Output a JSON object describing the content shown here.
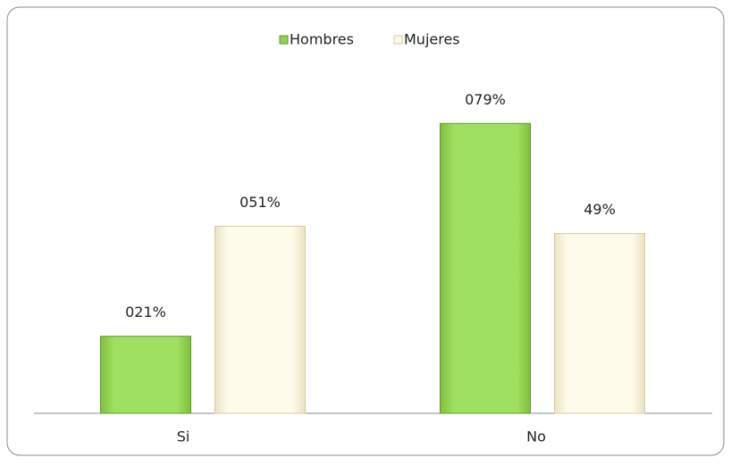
{
  "chart_data": {
    "type": "bar",
    "categories": [
      "Si",
      "No"
    ],
    "series": [
      {
        "name": "Hombres",
        "color": "#92d050",
        "values": [
          21,
          79
        ],
        "value_labels": [
          "021%",
          "079%"
        ]
      },
      {
        "name": "Mujeres",
        "color": "#fdf8e4",
        "values": [
          51,
          49
        ],
        "value_labels": [
          "051%",
          "49%"
        ]
      }
    ],
    "ylim": [
      0,
      100
    ],
    "legend": "top"
  }
}
